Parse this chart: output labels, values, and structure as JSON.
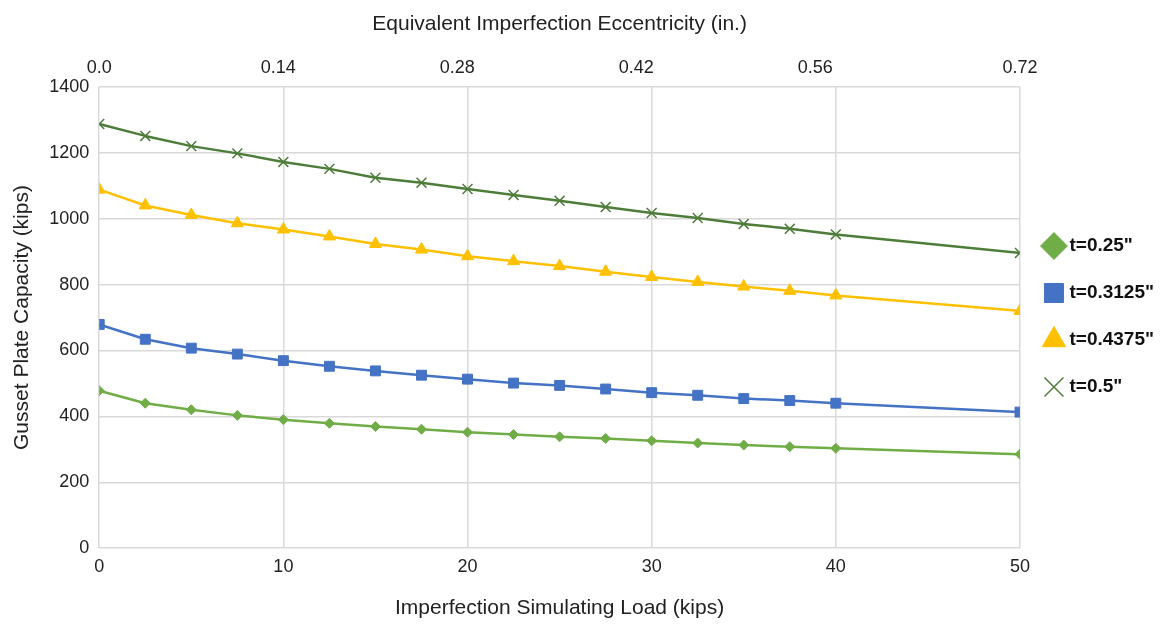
{
  "chart_data": {
    "type": "line",
    "xlabel": "Imperfection Simulating Load (kips)",
    "x2label": "Equivalent Imperfection Eccentricity (in.)",
    "ylabel": "Gusset Plate Capacity (kips)",
    "x": [
      0,
      2.5,
      5,
      7.5,
      10,
      12.5,
      15,
      17.5,
      20,
      22.5,
      25,
      27.5,
      30,
      32.5,
      35,
      37.5,
      40,
      50
    ],
    "series": [
      {
        "name": "t=0.25\"",
        "color": "#70ad47",
        "marker": "diamond",
        "values": [
          478,
          440,
          420,
          403,
          390,
          379,
          369,
          361,
          352,
          345,
          338,
          333,
          326,
          319,
          313,
          308,
          303,
          285
        ]
      },
      {
        "name": "t=0.3125\"",
        "color": "#4472c4",
        "marker": "square",
        "values": [
          679,
          634,
          607,
          589,
          569,
          552,
          538,
          525,
          513,
          501,
          494,
          483,
          472,
          464,
          454,
          448,
          440,
          413
        ]
      },
      {
        "name": "t=0.4375\"",
        "color": "#ffc000",
        "marker": "triangle",
        "values": [
          1088,
          1040,
          1011,
          986,
          967,
          946,
          923,
          906,
          886,
          871,
          856,
          839,
          823,
          808,
          794,
          781,
          767,
          720
        ]
      },
      {
        "name": "t=0.5\"",
        "color": "#4e7d3a",
        "marker": "cross",
        "values": [
          1287,
          1251,
          1220,
          1198,
          1172,
          1151,
          1124,
          1109,
          1090,
          1072,
          1054,
          1035,
          1017,
          1002,
          984,
          969,
          952,
          896
        ]
      }
    ],
    "xlim": [
      0,
      50
    ],
    "xticks": [
      0,
      10,
      20,
      30,
      40,
      50
    ],
    "x2lim": [
      0,
      0.72
    ],
    "x2ticks": [
      {
        "value": 0,
        "label": "0.0"
      },
      0.14,
      0.28,
      0.42,
      0.56,
      0.72
    ],
    "ylim": [
      0,
      1400
    ],
    "yticks": [
      0,
      200,
      400,
      600,
      800,
      1000,
      1200,
      1400
    ],
    "grid": true,
    "legend": "right",
    "line_style": "solid"
  }
}
